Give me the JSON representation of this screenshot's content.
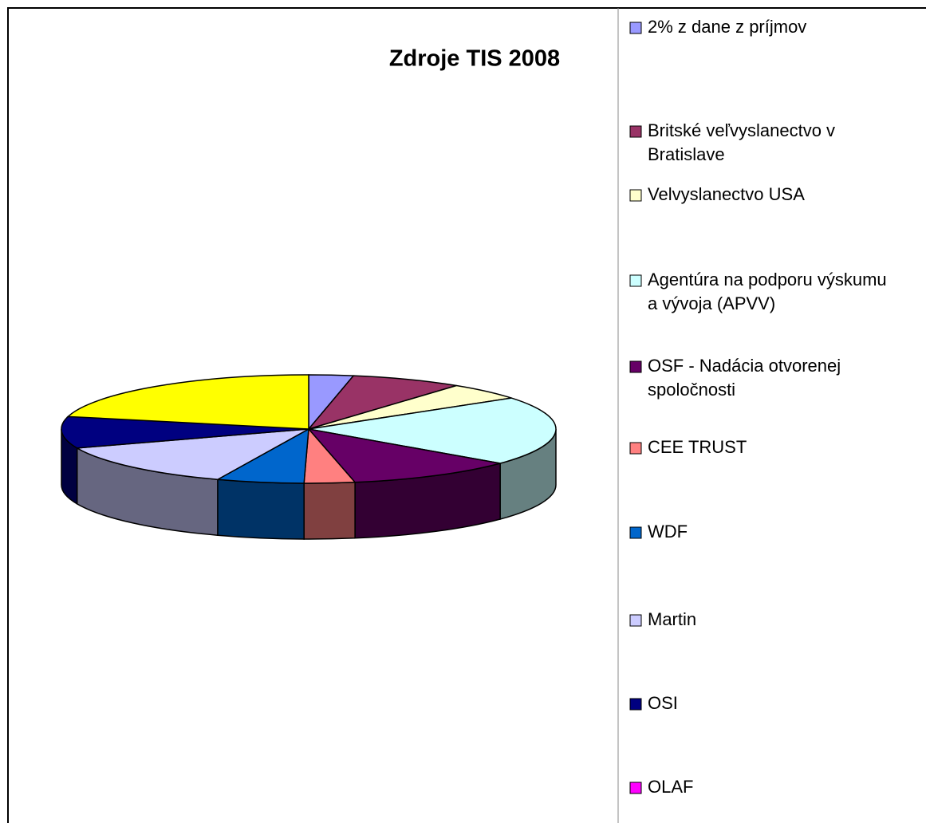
{
  "chart_data": {
    "type": "pie3d",
    "title": "Zdroje TIS 2008",
    "categories": [
      "2% z dane z príjmov",
      "Britské veľvyslanectvo v Bratislave",
      "Velvyslanectvo USA",
      "Agentúra na podporu výskumu a vývoja (APVV)",
      "OSF - Nadácia otvorenej spoločnosti",
      "CEE TRUST",
      "WDF",
      "Martin",
      "OSI",
      "OLAF",
      null
    ],
    "values": [
      2.9,
      7.3,
      5.1,
      20.6,
      11.1,
      3.3,
      5.7,
      13.3,
      9.4,
      0,
      21.3
    ],
    "colors": [
      "#9999ff",
      "#993366",
      "#ffffcc",
      "#ccffff",
      "#660066",
      "#ff8080",
      "#0066cc",
      "#ccccff",
      "#000080",
      "#ff00ff",
      "#ffff00"
    ],
    "legend": "right"
  }
}
